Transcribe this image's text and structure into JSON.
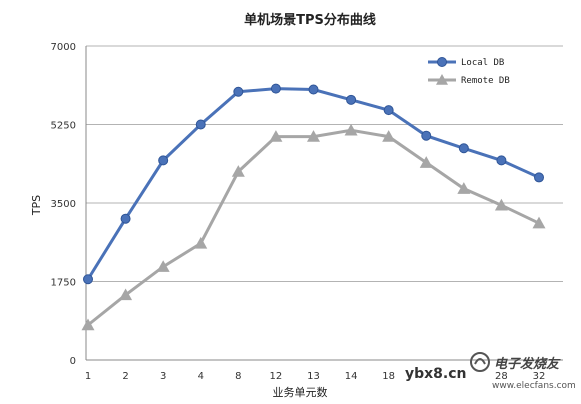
{
  "chart_data": {
    "type": "line",
    "title": "单机场景TPS分布曲线",
    "xlabel": "业务单元数",
    "ylabel": "TPS",
    "categories": [
      "1",
      "2",
      "3",
      "4",
      "8",
      "12",
      "13",
      "14",
      "18",
      "",
      "",
      "28",
      "32"
    ],
    "ylim": [
      0,
      7000
    ],
    "yticks": [
      "0",
      "1750",
      "3500",
      "5250",
      "7000"
    ],
    "grid": true,
    "legend_position": "top-right",
    "series": [
      {
        "name": "Local DB",
        "color": "#4a72b8",
        "marker": "circle",
        "values": [
          1800,
          3150,
          4450,
          5250,
          5980,
          6050,
          6030,
          5800,
          5570,
          5000,
          4720,
          4450,
          4070
        ]
      },
      {
        "name": "Remote DB",
        "color": "#a6a6a6",
        "marker": "triangle",
        "values": [
          780,
          1450,
          2080,
          2600,
          4200,
          4980,
          4980,
          5120,
          4980,
          4400,
          3820,
          3450,
          3050
        ]
      }
    ]
  },
  "watermark": {
    "site": "ybx8.cn",
    "brand": "电子发烧友",
    "url": "www.elecfans.com"
  }
}
